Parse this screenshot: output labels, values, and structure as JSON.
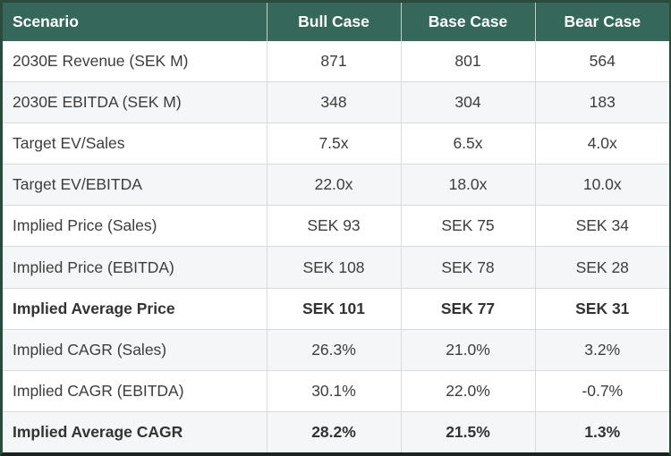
{
  "colors": {
    "header_bg": "#35685a",
    "header_text": "#ffffff",
    "row_bg": "#ffffff",
    "row_alt_bg": "#f5f6f7",
    "grid_line": "#d9dadb",
    "outer_border": "#2b4a3e",
    "bottom_border": "#17251e",
    "cell_text": "#3d3d3d"
  },
  "chart_data": {
    "type": "table",
    "columns": [
      "Scenario",
      "Bull Case",
      "Base Case",
      "Bear Case"
    ],
    "rows": [
      {
        "label": "2030E Revenue (SEK M)",
        "values": [
          "871",
          "801",
          "564"
        ],
        "bold": false
      },
      {
        "label": "2030E EBITDA (SEK M)",
        "values": [
          "348",
          "304",
          "183"
        ],
        "bold": false
      },
      {
        "label": "Target EV/Sales",
        "values": [
          "7.5x",
          "6.5x",
          "4.0x"
        ],
        "bold": false
      },
      {
        "label": "Target EV/EBITDA",
        "values": [
          "22.0x",
          "18.0x",
          "10.0x"
        ],
        "bold": false
      },
      {
        "label": "Implied Price (Sales)",
        "values": [
          "SEK 93",
          "SEK 75",
          "SEK 34"
        ],
        "bold": false
      },
      {
        "label": "Implied Price (EBITDA)",
        "values": [
          "SEK 108",
          "SEK 78",
          "SEK 28"
        ],
        "bold": false
      },
      {
        "label": "Implied Average Price",
        "values": [
          "SEK 101",
          "SEK 77",
          "SEK 31"
        ],
        "bold": true
      },
      {
        "label": "Implied CAGR (Sales)",
        "values": [
          "26.3%",
          "21.0%",
          "3.2%"
        ],
        "bold": false
      },
      {
        "label": "Implied CAGR (EBITDA)",
        "values": [
          "30.1%",
          "22.0%",
          "-0.7%"
        ],
        "bold": false
      },
      {
        "label": "Implied Average CAGR",
        "values": [
          "28.2%",
          "21.5%",
          "1.3%"
        ],
        "bold": true
      }
    ]
  }
}
